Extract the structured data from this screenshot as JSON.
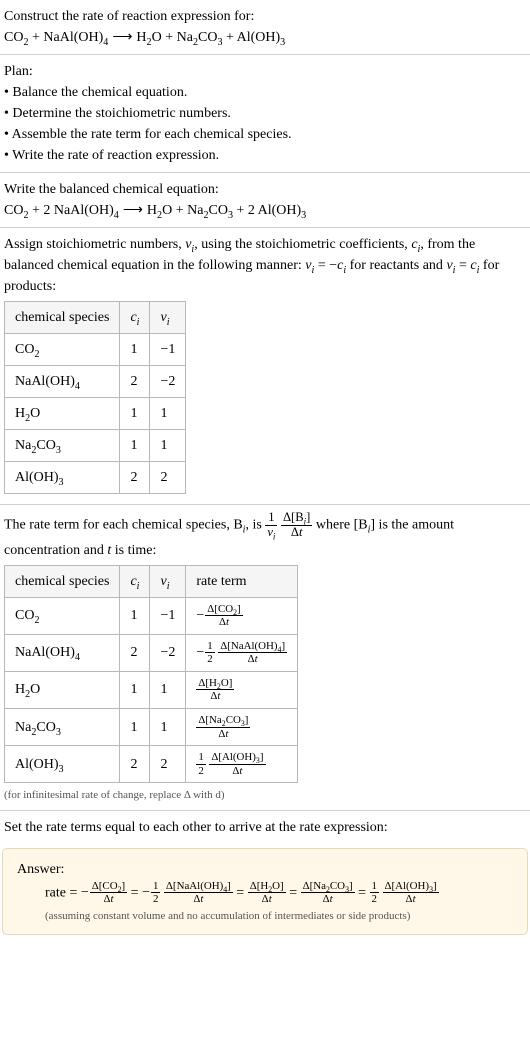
{
  "problem": {
    "title": "Construct the rate of reaction expression for:",
    "equation_parts": {
      "r1": "CO",
      "r1sub": "2",
      "plus1": " + ",
      "r2": "NaAl(OH)",
      "r2sub": "4",
      "arrow": " ⟶ ",
      "p1": "H",
      "p1sub": "2",
      "p1b": "O",
      "plus2": " + ",
      "p2": "Na",
      "p2sub1": "2",
      "p2b": "CO",
      "p2sub2": "3",
      "plus3": " + ",
      "p3": "Al(OH)",
      "p3sub": "3"
    }
  },
  "plan": {
    "heading": "Plan:",
    "items": [
      "Balance the chemical equation.",
      "Determine the stoichiometric numbers.",
      "Assemble the rate term for each chemical species.",
      "Write the rate of reaction expression."
    ]
  },
  "balanced": {
    "heading": "Write the balanced chemical equation:",
    "parts": {
      "r1": "CO",
      "r1sub": "2",
      "plus1": " + ",
      "c2": "2 ",
      "r2": "NaAl(OH)",
      "r2sub": "4",
      "arrow": " ⟶ ",
      "p1": "H",
      "p1sub": "2",
      "p1b": "O",
      "plus2": " + ",
      "p2": "Na",
      "p2sub1": "2",
      "p2b": "CO",
      "p2sub2": "3",
      "plus3": " + ",
      "c3": "2 ",
      "p3": "Al(OH)",
      "p3sub": "3"
    }
  },
  "stoich": {
    "intro1": "Assign stoichiometric numbers, ",
    "nu_i": "ν",
    "intro2": ", using the stoichiometric coefficients, ",
    "c_i": "c",
    "intro3": ", from the balanced chemical equation in the following manner: ",
    "rel1a": "ν",
    "rel1b": " = −",
    "rel1c": "c",
    "intro4": " for reactants and ",
    "rel2a": "ν",
    "rel2b": " = ",
    "rel2c": "c",
    "intro5": " for products:",
    "headers": {
      "h1": "chemical species",
      "h2": "c",
      "h3": "ν"
    },
    "rows": [
      {
        "species_a": "CO",
        "sub1": "2",
        "species_b": "",
        "sub2": "",
        "c": "1",
        "nu": "−1"
      },
      {
        "species_a": "NaAl(OH)",
        "sub1": "4",
        "species_b": "",
        "sub2": "",
        "c": "2",
        "nu": "−2"
      },
      {
        "species_a": "H",
        "sub1": "2",
        "species_b": "O",
        "sub2": "",
        "c": "1",
        "nu": "1"
      },
      {
        "species_a": "Na",
        "sub1": "2",
        "species_b": "CO",
        "sub2": "3",
        "c": "1",
        "nu": "1"
      },
      {
        "species_a": "Al(OH)",
        "sub1": "3",
        "species_b": "",
        "sub2": "",
        "c": "2",
        "nu": "2"
      }
    ]
  },
  "rate_term": {
    "intro1": "The rate term for each chemical species, B",
    "intro2": ", is ",
    "frac1_num": "1",
    "frac1_den_a": "ν",
    "frac2_num_a": "Δ[B",
    "frac2_num_b": "]",
    "frac2_den": "Δt",
    "intro3": " where [B",
    "intro4": "] is the amount concentration and ",
    "t": "t",
    "intro5": " is time:",
    "headers": {
      "h1": "chemical species",
      "h2": "c",
      "h3": "ν",
      "h4": "rate term"
    },
    "rows": [
      {
        "species_a": "CO",
        "sub1": "2",
        "species_b": "",
        "sub2": "",
        "c": "1",
        "nu": "−1",
        "neg": "−",
        "coef_num": "",
        "coef_den": "",
        "d_num": "Δ[CO2]",
        "d_den": "Δt"
      },
      {
        "species_a": "NaAl(OH)",
        "sub1": "4",
        "species_b": "",
        "sub2": "",
        "c": "2",
        "nu": "−2",
        "neg": "−",
        "coef_num": "1",
        "coef_den": "2",
        "d_num": "Δ[NaAl(OH)4]",
        "d_den": "Δt"
      },
      {
        "species_a": "H",
        "sub1": "2",
        "species_b": "O",
        "sub2": "",
        "c": "1",
        "nu": "1",
        "neg": "",
        "coef_num": "",
        "coef_den": "",
        "d_num": "Δ[H2O]",
        "d_den": "Δt"
      },
      {
        "species_a": "Na",
        "sub1": "2",
        "species_b": "CO",
        "sub2": "3",
        "c": "1",
        "nu": "1",
        "neg": "",
        "coef_num": "",
        "coef_den": "",
        "d_num": "Δ[Na2CO3]",
        "d_den": "Δt"
      },
      {
        "species_a": "Al(OH)",
        "sub1": "3",
        "species_b": "",
        "sub2": "",
        "c": "2",
        "nu": "2",
        "neg": "",
        "coef_num": "1",
        "coef_den": "2",
        "d_num": "Δ[Al(OH)3]",
        "d_den": "Δt"
      }
    ],
    "note": "(for infinitesimal rate of change, replace Δ with d)"
  },
  "final": {
    "heading": "Set the rate terms equal to each other to arrive at the rate expression:"
  },
  "answer": {
    "label": "Answer:",
    "rate_label": "rate = ",
    "eq": " = ",
    "terms": [
      {
        "neg": "−",
        "coef_num": "",
        "coef_den": "",
        "d_num": "Δ[CO2]",
        "d_den": "Δt"
      },
      {
        "neg": "−",
        "coef_num": "1",
        "coef_den": "2",
        "d_num": "Δ[NaAl(OH)4]",
        "d_den": "Δt"
      },
      {
        "neg": "",
        "coef_num": "",
        "coef_den": "",
        "d_num": "Δ[H2O]",
        "d_den": "Δt"
      },
      {
        "neg": "",
        "coef_num": "",
        "coef_den": "",
        "d_num": "Δ[Na2CO3]",
        "d_den": "Δt"
      },
      {
        "neg": "",
        "coef_num": "1",
        "coef_den": "2",
        "d_num": "Δ[Al(OH)3]",
        "d_den": "Δt"
      }
    ],
    "note": "(assuming constant volume and no accumulation of intermediates or side products)"
  },
  "sub_i": "i"
}
